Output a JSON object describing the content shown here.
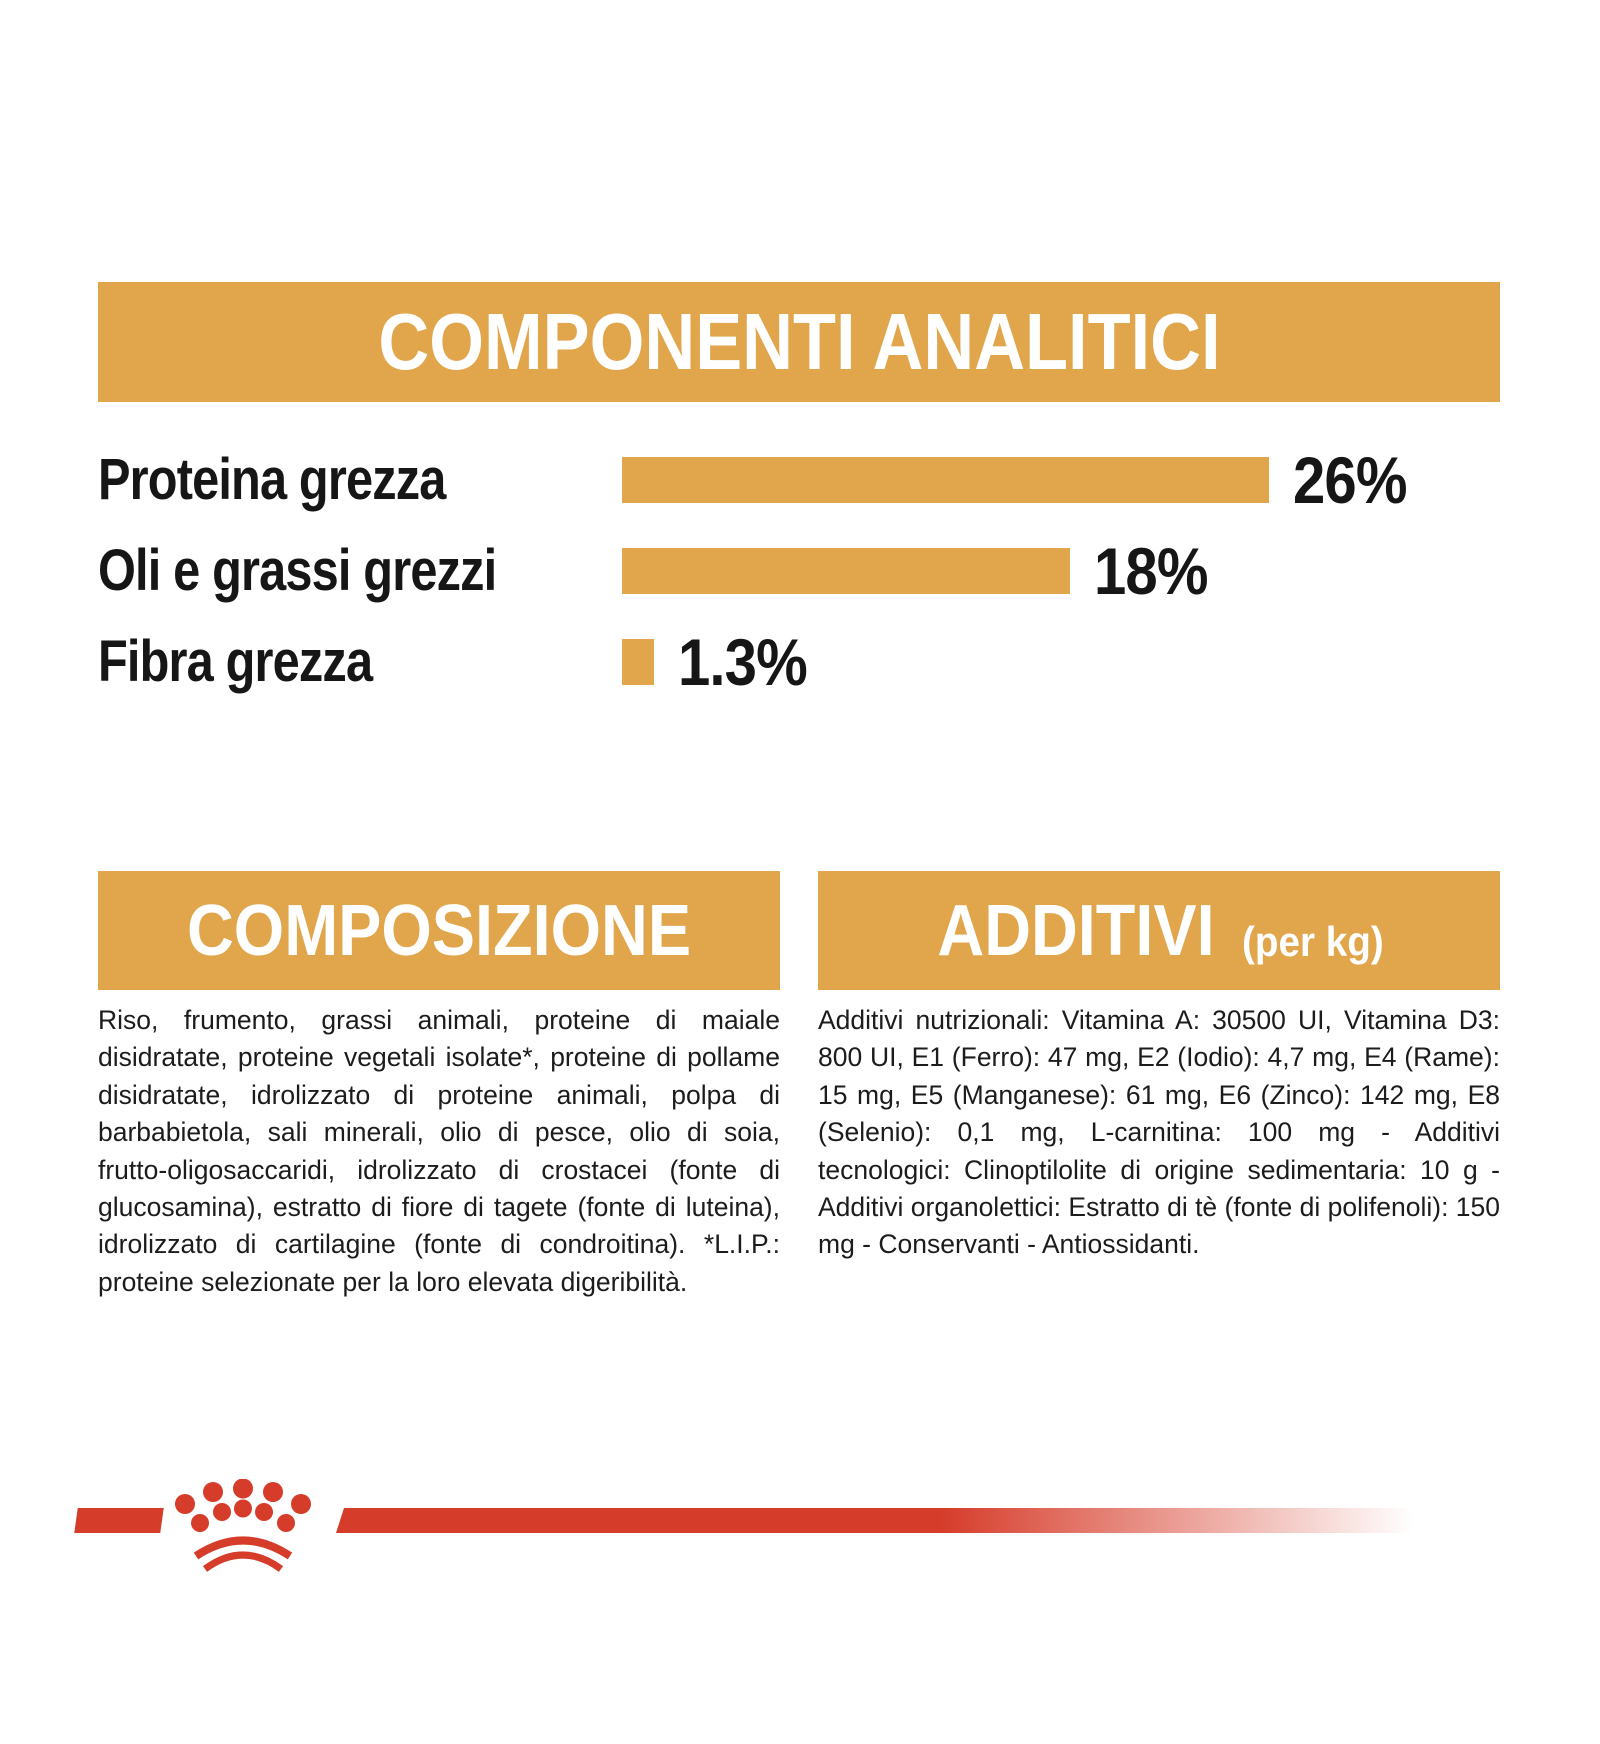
{
  "colors": {
    "gold": "#E1A64C",
    "red": "#D63C2A",
    "ink": "#161616"
  },
  "analytical": {
    "title": "COMPONENTI ANALITICI"
  },
  "chart_data": {
    "type": "bar",
    "orientation": "horizontal",
    "title": "COMPONENTI ANALITICI",
    "categories": [
      "Proteina grezza",
      "Oli e grassi grezzi",
      "Fibra grezza"
    ],
    "values": [
      26,
      18,
      1.3
    ],
    "value_labels": [
      "26%",
      "18%",
      "1.3%"
    ],
    "unit": "%",
    "xlim": [
      0,
      28
    ],
    "bar_color": "#E1A64C",
    "gridlines": false,
    "legend": false
  },
  "composition": {
    "title": "COMPOSIZIONE",
    "body": "Riso, frumento, grassi animali, proteine di maiale disidratate, proteine vegetali isolate*, proteine di pollame disidratate, idrolizzato di proteine animali, polpa di barbabietola, sali minerali, olio di pesce, olio di soia, frutto-oligosaccaridi, idrolizzato di crostacei (fonte di glucosamina), estratto di fiore di tagete (fonte di luteina), idrolizzato di cartilagine (fonte di condroitina). *L.I.P.: proteine selezionate per la loro elevata digeribilità."
  },
  "additives": {
    "title": "ADDITIVI",
    "title_suffix": "(per kg)",
    "body": "Additivi nutrizionali: Vitamina A: 30500 UI, Vitamina D3: 800 UI, E1 (Ferro): 47 mg, E2 (Iodio): 4,7 mg, E4 (Rame): 15 mg, E5 (Manganese): 61 mg, E6 (Zinco): 142 mg, E8 (Selenio): 0,1 mg, L-carnitina: 100 mg - Additivi tecnologici: Clinoptilolite di origine sedimentaria: 10 g - Additivi organolettici: Estratto di tè (fonte di polifenoli): 150 mg - Conservanti - Antiossidanti."
  },
  "footer": {
    "logo": "royal-canin-crown"
  }
}
